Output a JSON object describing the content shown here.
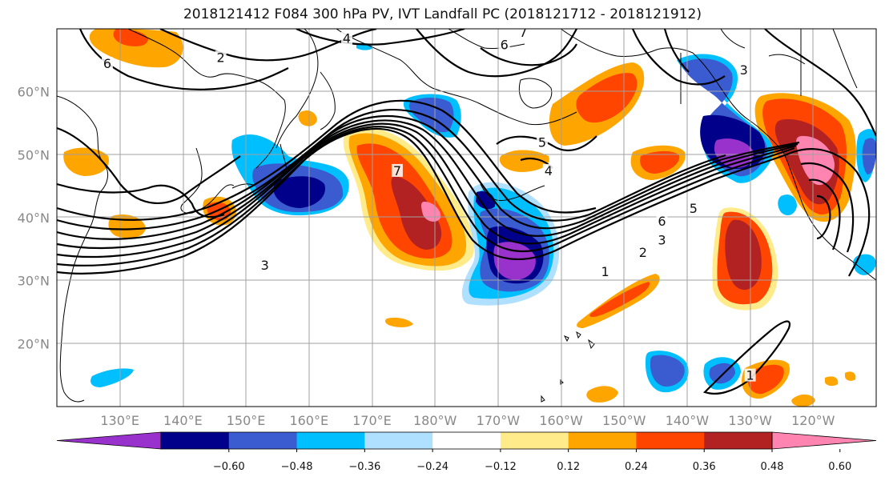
{
  "title": "2018121412 F084 300 hPa PV, IVT Landfall PC (2018121712 - 2018121912)",
  "lat_labels": [
    {
      "text": "60°N",
      "lat": 60
    },
    {
      "text": "50°N",
      "lat": 50
    },
    {
      "text": "40°N",
      "lat": 40
    },
    {
      "text": "30°N",
      "lat": 30
    },
    {
      "text": "20°N",
      "lat": 20
    }
  ],
  "lon_labels": [
    {
      "text": "130°E",
      "lon": 130
    },
    {
      "text": "140°E",
      "lon": 140
    },
    {
      "text": "150°E",
      "lon": 150
    },
    {
      "text": "160°E",
      "lon": 160
    },
    {
      "text": "170°E",
      "lon": 170
    },
    {
      "text": "180°W",
      "lon": 180
    },
    {
      "text": "170°W",
      "lon": 190
    },
    {
      "text": "160°W",
      "lon": 200
    },
    {
      "text": "150°W",
      "lon": 210
    },
    {
      "text": "140°W",
      "lon": 220
    },
    {
      "text": "130°W",
      "lon": 230
    },
    {
      "text": "120°W",
      "lon": 240
    }
  ],
  "colorbar": {
    "colors": [
      "#9932cc",
      "#00008b",
      "#3b5bd0",
      "#00bfff",
      "#b0e0ff",
      "#ffffff",
      "#ffeb8a",
      "#ffa500",
      "#ff4500",
      "#b22222",
      "#ff85b0"
    ],
    "ticks": [
      "−0.60",
      "−0.48",
      "−0.36",
      "−0.24",
      "−0.12",
      "0.12",
      "0.24",
      "0.36",
      "0.48",
      "0.60"
    ]
  },
  "contour_labels": [
    {
      "text": "2",
      "lon": 146,
      "lat": 65
    },
    {
      "text": "4",
      "lon": 166,
      "lat": 68
    },
    {
      "text": "6",
      "lon": 191,
      "lat": 67
    },
    {
      "text": "7",
      "lon": 194,
      "lat": 69
    },
    {
      "text": "6",
      "lon": 128,
      "lat": 64
    },
    {
      "text": "5",
      "lon": 197,
      "lat": 51.5
    },
    {
      "text": "4",
      "lon": 198,
      "lat": 47
    },
    {
      "text": "3",
      "lon": 153,
      "lat": 32
    },
    {
      "text": "6",
      "lon": 216,
      "lat": 39
    },
    {
      "text": "5",
      "lon": 221,
      "lat": 41
    },
    {
      "text": "3",
      "lon": 216,
      "lat": 36
    },
    {
      "text": "2",
      "lon": 213,
      "lat": 34
    },
    {
      "text": "1",
      "lon": 207,
      "lat": 31
    },
    {
      "text": "1",
      "lon": 230,
      "lat": 14.5
    },
    {
      "text": "3",
      "lon": 229,
      "lat": 63
    },
    {
      "text": "7",
      "lon": 174,
      "lat": 47
    }
  ]
}
